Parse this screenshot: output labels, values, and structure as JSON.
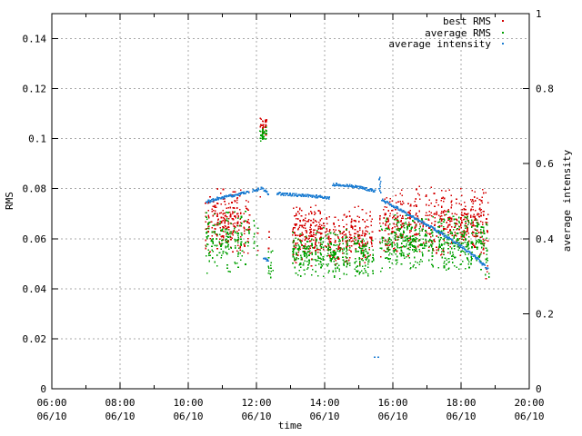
{
  "window": {
    "background": "#ffffff"
  },
  "chart_data": {
    "type": "scatter",
    "title": "",
    "xlabel": "time",
    "ylabel": "RMS",
    "y2label": "average intensity",
    "grid": {
      "color": "#a8a8a8",
      "dash": "2,3",
      "on": true
    },
    "legend": {
      "position": "top-right-inside"
    },
    "x_axis": {
      "start_hour": 6,
      "end_hour": 20,
      "major_hours": [
        6,
        8,
        10,
        12,
        14,
        16,
        18,
        20
      ],
      "minor_hours": [
        7,
        9,
        11,
        13,
        15,
        17,
        19
      ],
      "time_labels": [
        "06:00",
        "08:00",
        "10:00",
        "12:00",
        "14:00",
        "16:00",
        "18:00",
        "20:00"
      ],
      "date_labels": [
        "06/10",
        "06/10",
        "06/10",
        "06/10",
        "06/10",
        "06/10",
        "06/10",
        "06/10"
      ]
    },
    "y_axis": {
      "min": 0,
      "max": 0.15,
      "ticks": [
        0,
        0.02,
        0.04,
        0.06,
        0.08,
        0.1,
        0.12,
        0.14
      ],
      "tick_labels": [
        "0",
        "0.02",
        "0.04",
        "0.06",
        "0.08",
        "0.1",
        "0.12",
        "0.14"
      ]
    },
    "y2_axis": {
      "min": 0,
      "max": 1,
      "ticks": [
        0,
        0.2,
        0.4,
        0.6,
        0.8,
        1
      ],
      "tick_labels": [
        "0",
        "0.2",
        "0.4",
        "0.6",
        "0.8",
        "1"
      ]
    },
    "series": [
      {
        "name": "best RMS",
        "color": "#d40000",
        "axis": "left",
        "kind": "noise_bands",
        "bands": [
          {
            "t0": 10.53,
            "t1": 11.79,
            "lo": 0.053,
            "hi": 0.0805,
            "per_stripe": 9,
            "gap": 0.08
          },
          {
            "t0": 11.89,
            "t1": 12.08,
            "lo": 0.05,
            "hi": 0.079,
            "per_stripe": 5,
            "gap": 0.3
          },
          {
            "t0": 12.13,
            "t1": 12.29,
            "lo": 0.1005,
            "hi": 0.1085,
            "per_stripe": 12,
            "gap": 0.05
          },
          {
            "t0": 12.13,
            "t1": 12.29,
            "lo": 0.071,
            "hi": 0.08,
            "per_stripe": 2,
            "gap": 0.5
          },
          {
            "t0": 12.37,
            "t1": 12.56,
            "lo": 0.044,
            "hi": 0.067,
            "per_stripe": 5,
            "gap": 0.3
          },
          {
            "t0": 13.07,
            "t1": 15.44,
            "lo": 0.049,
            "hi": 0.0735,
            "per_stripe": 9,
            "gap": 0.08
          },
          {
            "t0": 15.63,
            "t1": 18.8,
            "lo": 0.051,
            "hi": 0.0815,
            "per_stripe": 9,
            "gap": 0.08
          },
          {
            "t0": 18.72,
            "t1": 18.82,
            "lo": 0.042,
            "hi": 0.052,
            "per_stripe": 2,
            "gap": 0.5
          }
        ]
      },
      {
        "name": "average RMS",
        "color": "#00a000",
        "axis": "left",
        "kind": "noise_bands",
        "bands": [
          {
            "t0": 10.53,
            "t1": 11.79,
            "lo": 0.0455,
            "hi": 0.0725,
            "per_stripe": 9,
            "gap": 0.08
          },
          {
            "t0": 11.89,
            "t1": 12.08,
            "lo": 0.047,
            "hi": 0.07,
            "per_stripe": 5,
            "gap": 0.3
          },
          {
            "t0": 12.13,
            "t1": 12.29,
            "lo": 0.0985,
            "hi": 0.1055,
            "per_stripe": 10,
            "gap": 0.05
          },
          {
            "t0": 12.37,
            "t1": 12.56,
            "lo": 0.042,
            "hi": 0.061,
            "per_stripe": 5,
            "gap": 0.3
          },
          {
            "t0": 13.07,
            "t1": 15.44,
            "lo": 0.0435,
            "hi": 0.0645,
            "per_stripe": 9,
            "gap": 0.08
          },
          {
            "t0": 15.63,
            "t1": 18.8,
            "lo": 0.0455,
            "hi": 0.0715,
            "per_stripe": 9,
            "gap": 0.08
          },
          {
            "t0": 18.72,
            "t1": 18.82,
            "lo": 0.04,
            "hi": 0.05,
            "per_stripe": 2,
            "gap": 0.5
          }
        ]
      },
      {
        "name": "average intensity",
        "color": "#1d7dd2",
        "axis": "right",
        "kind": "dot_segments",
        "segments": [
          [
            [
              10.53,
              0.498
            ],
            [
              10.95,
              0.509
            ],
            [
              11.4,
              0.517
            ],
            [
              11.79,
              0.525
            ]
          ],
          [
            [
              11.89,
              0.528
            ],
            [
              12.08,
              0.532
            ]
          ],
          [
            [
              12.13,
              0.535
            ],
            [
              12.35,
              0.521
            ]
          ],
          [
            [
              12.21,
              0.347
            ],
            [
              12.37,
              0.342
            ]
          ],
          [
            [
              12.61,
              0.52
            ],
            [
              13.2,
              0.5165
            ],
            [
              13.8,
              0.512
            ],
            [
              14.16,
              0.508
            ]
          ],
          [
            [
              14.24,
              0.545
            ],
            [
              14.7,
              0.5415
            ],
            [
              15.1,
              0.535
            ],
            [
              15.49,
              0.527
            ]
          ],
          [
            [
              15.68,
              0.503
            ],
            [
              16.1,
              0.4835
            ],
            [
              16.6,
              0.458
            ],
            [
              17.1,
              0.4315
            ],
            [
              17.6,
              0.404
            ],
            [
              18.1,
              0.373
            ],
            [
              18.5,
              0.3455
            ],
            [
              18.8,
              0.317
            ]
          ]
        ],
        "vertical_blips": [
          {
            "t": 15.625,
            "lo": 0.523,
            "hi": 0.566
          }
        ],
        "isolated_dots": [
          [
            15.47,
            0.084
          ],
          [
            15.57,
            0.084
          ]
        ]
      }
    ]
  }
}
